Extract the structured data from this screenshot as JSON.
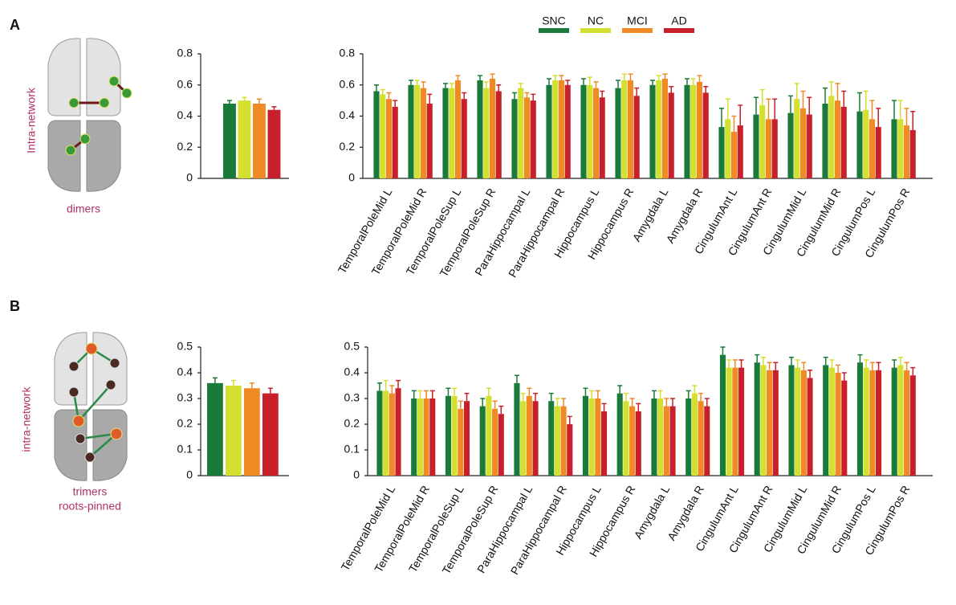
{
  "panels": [
    {
      "letter": "A",
      "side_label": "Intra-network",
      "caption": [
        "dimers"
      ]
    },
    {
      "letter": "B",
      "side_label": "intra-network",
      "caption": [
        "trimers",
        "roots-pinned"
      ]
    }
  ],
  "chart_data": [
    {
      "type": "bar",
      "values": [
        0.48,
        0.5,
        0.48,
        0.44
      ],
      "errors": [
        0.02,
        0.02,
        0.03,
        0.02
      ],
      "colors": [
        "#1a7a3a",
        "#d4e030",
        "#f08a24",
        "#c8202a"
      ],
      "ylim": [
        0,
        0.8
      ],
      "yticks": [
        0,
        0.2,
        0.4,
        0.6,
        0.8
      ]
    },
    {
      "type": "grouped-bar",
      "categories": [
        "TemporalPoleMid L",
        "TemporalPoleMid R",
        "TemporalPoleSup L",
        "TemporalPoleSup R",
        "ParaHippocampal L",
        "ParaHippocampal R",
        "Hippocampus L",
        "Hippocampus R",
        "Amygdala L",
        "Amygdala R",
        "CingulumAnt L",
        "CingulumAnt R",
        "CingulumMid L",
        "CingulumMid R",
        "CingulumPos L",
        "CingulumPos R"
      ],
      "series": [
        {
          "name": "SNC",
          "color": "#1a7a3a",
          "values": [
            0.56,
            0.6,
            0.58,
            0.63,
            0.51,
            0.6,
            0.6,
            0.58,
            0.6,
            0.6,
            0.33,
            0.41,
            0.42,
            0.48,
            0.43,
            0.38
          ],
          "errors": [
            0.04,
            0.03,
            0.03,
            0.03,
            0.04,
            0.04,
            0.04,
            0.05,
            0.03,
            0.04,
            0.12,
            0.11,
            0.11,
            0.1,
            0.12,
            0.12
          ]
        },
        {
          "name": "NC",
          "color": "#d4e030",
          "values": [
            0.54,
            0.6,
            0.58,
            0.58,
            0.58,
            0.63,
            0.6,
            0.63,
            0.63,
            0.6,
            0.38,
            0.47,
            0.51,
            0.53,
            0.44,
            0.38
          ],
          "errors": [
            0.03,
            0.03,
            0.03,
            0.04,
            0.03,
            0.03,
            0.05,
            0.04,
            0.03,
            0.04,
            0.13,
            0.1,
            0.1,
            0.09,
            0.12,
            0.12
          ]
        },
        {
          "name": "MCI",
          "color": "#f08a24",
          "values": [
            0.51,
            0.58,
            0.63,
            0.64,
            0.52,
            0.63,
            0.58,
            0.63,
            0.64,
            0.62,
            0.3,
            0.38,
            0.45,
            0.5,
            0.38,
            0.34
          ],
          "errors": [
            0.04,
            0.04,
            0.03,
            0.03,
            0.03,
            0.03,
            0.04,
            0.04,
            0.03,
            0.04,
            0.1,
            0.13,
            0.11,
            0.11,
            0.12,
            0.11
          ]
        },
        {
          "name": "AD",
          "color": "#c8202a",
          "values": [
            0.46,
            0.48,
            0.51,
            0.56,
            0.5,
            0.6,
            0.52,
            0.53,
            0.55,
            0.55,
            0.34,
            0.38,
            0.41,
            0.46,
            0.33,
            0.31
          ],
          "errors": [
            0.04,
            0.06,
            0.04,
            0.04,
            0.04,
            0.03,
            0.04,
            0.05,
            0.04,
            0.04,
            0.13,
            0.13,
            0.11,
            0.1,
            0.12,
            0.12
          ]
        }
      ],
      "ylim": [
        0,
        0.8
      ],
      "yticks": [
        0,
        0.2,
        0.4,
        0.6,
        0.8
      ]
    },
    {
      "type": "bar",
      "values": [
        0.36,
        0.35,
        0.34,
        0.32
      ],
      "errors": [
        0.02,
        0.02,
        0.02,
        0.02
      ],
      "colors": [
        "#1a7a3a",
        "#d4e030",
        "#f08a24",
        "#c8202a"
      ],
      "ylim": [
        0,
        0.5
      ],
      "yticks": [
        0,
        0.1,
        0.2,
        0.3,
        0.4,
        0.5
      ]
    },
    {
      "type": "grouped-bar",
      "categories": [
        "TemporalPoleMid L",
        "TemporalPoleMid R",
        "TemporalPoleSup L",
        "TemporalPoleSup R",
        "ParaHippocampal L",
        "ParaHippocampal R",
        "Hippocampus L",
        "Hippocampus R",
        "Amygdala L",
        "Amygdala R",
        "CingulumAnt L",
        "CingulumAnt R",
        "CingulumMid L",
        "CingulumMid R",
        "CingulumPos L",
        "CingulumPos R"
      ],
      "series": [
        {
          "color": "#1a7a3a",
          "values": [
            0.33,
            0.3,
            0.31,
            0.27,
            0.36,
            0.29,
            0.31,
            0.32,
            0.3,
            0.3,
            0.47,
            0.44,
            0.43,
            0.43,
            0.44,
            0.42
          ],
          "errors": [
            0.03,
            0.03,
            0.03,
            0.03,
            0.03,
            0.03,
            0.03,
            0.03,
            0.03,
            0.03,
            0.03,
            0.03,
            0.03,
            0.03,
            0.03,
            0.03
          ]
        },
        {
          "color": "#d4e030",
          "values": [
            0.33,
            0.3,
            0.31,
            0.31,
            0.29,
            0.27,
            0.3,
            0.29,
            0.3,
            0.32,
            0.42,
            0.43,
            0.42,
            0.42,
            0.42,
            0.43
          ],
          "errors": [
            0.04,
            0.03,
            0.03,
            0.03,
            0.03,
            0.03,
            0.03,
            0.03,
            0.03,
            0.03,
            0.03,
            0.03,
            0.03,
            0.03,
            0.03,
            0.03
          ]
        },
        {
          "color": "#f08a24",
          "values": [
            0.32,
            0.3,
            0.26,
            0.26,
            0.31,
            0.27,
            0.3,
            0.27,
            0.27,
            0.29,
            0.42,
            0.41,
            0.41,
            0.4,
            0.41,
            0.41
          ],
          "errors": [
            0.03,
            0.03,
            0.03,
            0.03,
            0.03,
            0.03,
            0.03,
            0.03,
            0.03,
            0.03,
            0.03,
            0.03,
            0.03,
            0.03,
            0.03,
            0.03
          ]
        },
        {
          "color": "#c8202a",
          "values": [
            0.34,
            0.3,
            0.29,
            0.24,
            0.29,
            0.2,
            0.25,
            0.25,
            0.27,
            0.27,
            0.42,
            0.41,
            0.38,
            0.37,
            0.41,
            0.39
          ],
          "errors": [
            0.03,
            0.03,
            0.03,
            0.03,
            0.03,
            0.03,
            0.03,
            0.03,
            0.03,
            0.03,
            0.03,
            0.03,
            0.03,
            0.03,
            0.03,
            0.03
          ]
        }
      ],
      "ylim": [
        0,
        0.5
      ],
      "yticks": [
        0,
        0.1,
        0.2,
        0.3,
        0.4,
        0.5
      ]
    }
  ]
}
